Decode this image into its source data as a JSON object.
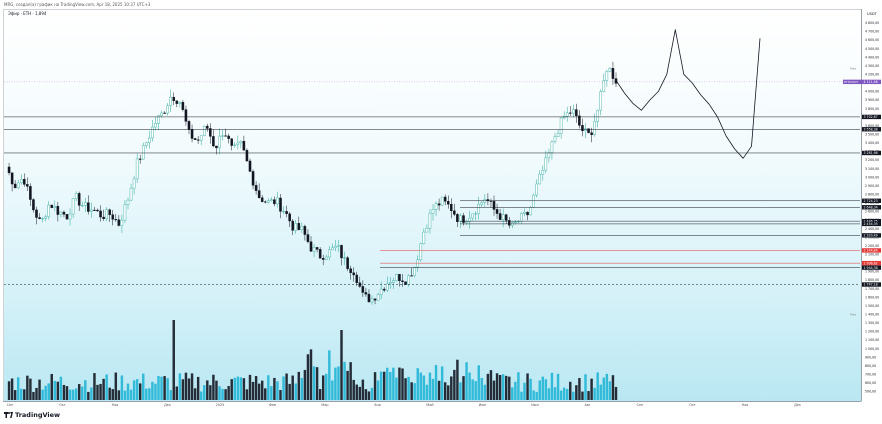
{
  "header": {
    "caption": "MRG, создал(а) график на TradingView.com, Apr 18, 2025 10:37 UTC+3",
    "symbol_line": "Эфир · ETH · 1,894"
  },
  "axis": {
    "currency": "USDT",
    "price_ticks": [
      "4 900,00",
      "4 800,00",
      "4 700,00",
      "4 600,00",
      "4 500,00",
      "4 400,00",
      "4 300,00",
      "4 200,00",
      "4 100,00",
      "4 000,00",
      "3 900,00",
      "3 800,00",
      "3 700,00",
      "3 600,00",
      "3 500,00",
      "3 400,00",
      "3 300,00",
      "3 200,00",
      "3 100,00",
      "3 000,00",
      "2 900,00",
      "2 800,00",
      "2 700,00",
      "2 600,00",
      "2 500,00",
      "2 400,00",
      "2 300,00",
      "2 200,00",
      "2 100,00",
      "2 000,00",
      "1 900,00",
      "1 800,00",
      "1 700,00",
      "1 600,00",
      "1 500,00",
      "1 400,00",
      "1 300,00",
      "1 200,00",
      "1 100,00",
      "1 000,00",
      "900,00",
      "800,00",
      "700,00",
      "600,00",
      "500,00",
      "400,00"
    ],
    "time_ticks": [
      "Сен",
      "Окт",
      "Ноя",
      "Дек",
      "2025",
      "Фев",
      "Мар",
      "Апр",
      "Май",
      "Июн",
      "Июл",
      "Авг",
      "Сен",
      "Окт",
      "Ноя",
      "Дек"
    ]
  },
  "labels": {
    "max_tag": "Max",
    "min_tag": "Max",
    "current_price": "4 111,46",
    "current_badge": "ETHUSDT"
  },
  "levels": [
    {
      "price": "3 702,67",
      "style": "solid",
      "color": "#131722"
    },
    {
      "price": "3 558,38",
      "style": "solid",
      "color": "#131722"
    },
    {
      "price": "3 281,98",
      "style": "solid",
      "color": "#131722"
    },
    {
      "price": "2 724,23",
      "style": "solid",
      "color": "#131722"
    },
    {
      "price": "2 648,34",
      "style": "solid",
      "color": "#131722"
    },
    {
      "price": "2 486,75",
      "style": "solid",
      "color": "#131722"
    },
    {
      "price": "2 454,35",
      "style": "solid",
      "color": "#131722"
    },
    {
      "price": "2 320,49",
      "style": "solid",
      "color": "#131722"
    },
    {
      "price": "2 144,84",
      "style": "solid",
      "color": "#e53935"
    },
    {
      "price": "1 996,62",
      "style": "solid",
      "color": "#e53935"
    },
    {
      "price": "1 944,38",
      "style": "solid",
      "color": "#131722"
    },
    {
      "price": "1 747,18",
      "style": "dashed",
      "color": "#131722"
    }
  ],
  "chart_data": {
    "type": "candlestick",
    "symbol": "ETHUSDT",
    "ylim": [
      400,
      4950
    ],
    "x": [
      "Сен",
      "Окт",
      "Ноя",
      "Дек",
      "2025",
      "Фев",
      "Мар",
      "Апр",
      "Май",
      "Июн",
      "Июл",
      "Авг",
      "Сен",
      "Окт",
      "Ноя",
      "Дек"
    ],
    "close_path_keyframes": [
      3120,
      2900,
      3000,
      2660,
      2450,
      2700,
      2600,
      2550,
      2760,
      2650,
      2620,
      2550,
      2570,
      2450,
      2750,
      3150,
      3380,
      3620,
      3750,
      3960,
      3880,
      3500,
      3420,
      3600,
      3340,
      3560,
      3300,
      3380,
      3060,
      2780,
      2700,
      2720,
      2600,
      2410,
      2380,
      2180,
      2080,
      2120,
      2190,
      1990,
      1900,
      1600,
      1580,
      1690,
      1800,
      1840,
      1800,
      1980,
      2390,
      2630,
      2720,
      2650,
      2500,
      2540,
      2640,
      2760,
      2620,
      2520,
      2410,
      2510,
      2580,
      2920,
      3180,
      3480,
      3700,
      3780,
      3560,
      3480,
      3820,
      4300,
      4130
    ],
    "projection_path": [
      4130,
      3980,
      3860,
      3780,
      3900,
      4000,
      4200,
      4720,
      4200,
      4100,
      3960,
      3850,
      3700,
      3480,
      3330,
      3220,
      3360,
      4620
    ],
    "volume": "bars"
  },
  "colors": {
    "up": "#26a69a",
    "down": "#131722",
    "volume_up": "#22b5d6",
    "volume_down": "#131722",
    "badge": "#7e57c2"
  },
  "footer": {
    "brand": "TradingView"
  }
}
